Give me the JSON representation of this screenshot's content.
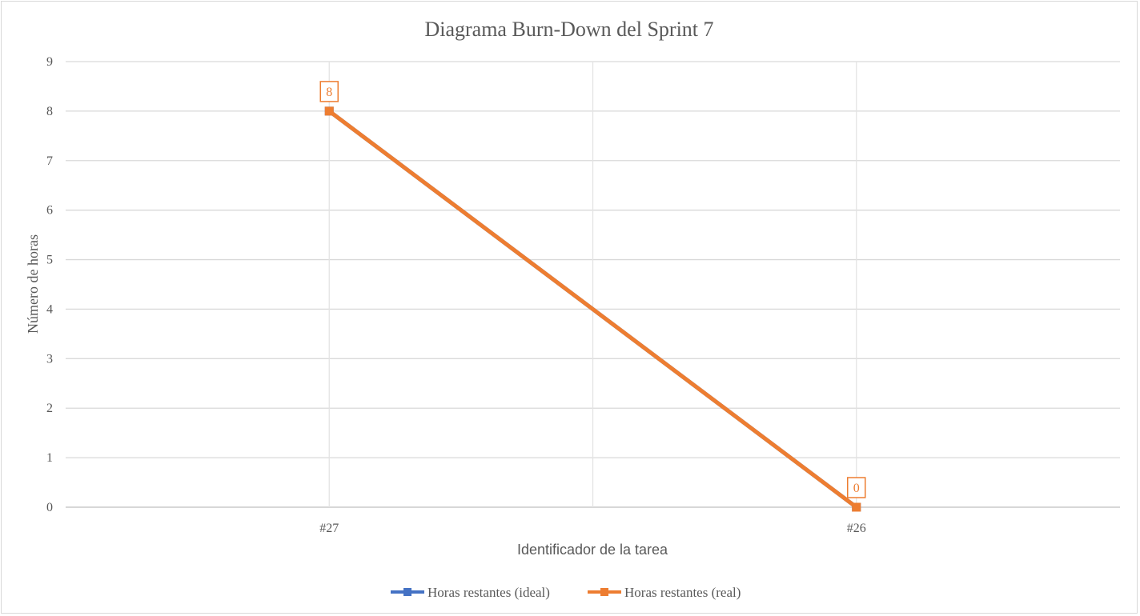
{
  "chart_data": {
    "type": "line",
    "title": "Diagrama  Burn-Down  del  Sprint  7",
    "xlabel": "Identificador de la tarea",
    "ylabel": "Número de horas",
    "categories": [
      "#27",
      "#26"
    ],
    "ylim": [
      0,
      9
    ],
    "yticks": [
      0,
      1,
      2,
      3,
      4,
      5,
      6,
      7,
      8,
      9
    ],
    "grid": true,
    "legend_position": "bottom",
    "series": [
      {
        "name": "Horas restantes (ideal)",
        "color": "#4472c4",
        "values": [
          8,
          0
        ]
      },
      {
        "name": "Horas restantes (real)",
        "color": "#ed7d31",
        "values": [
          8,
          0
        ],
        "data_labels": true
      }
    ]
  }
}
